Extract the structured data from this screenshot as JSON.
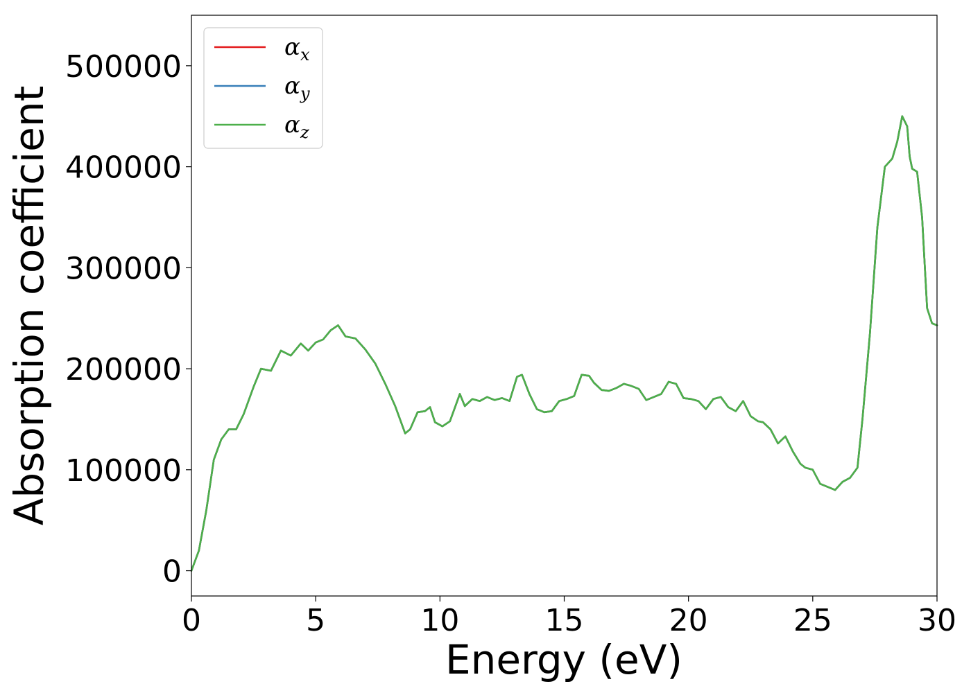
{
  "chart_data": {
    "type": "line",
    "xlabel": "Energy (eV)",
    "ylabel": "Absorption coefficient",
    "xlim": [
      0,
      30
    ],
    "ylim": [
      -25000,
      550000
    ],
    "xticks": [
      0,
      5,
      10,
      15,
      20,
      25,
      30
    ],
    "xtick_labels": [
      "0",
      "5",
      "10",
      "15",
      "20",
      "25",
      "30"
    ],
    "yticks": [
      0,
      100000,
      200000,
      300000,
      400000,
      500000
    ],
    "ytick_labels": [
      "0",
      "100000",
      "200000",
      "300000",
      "400000",
      "500000"
    ],
    "grid": false,
    "legend_position": "top-left",
    "x": [
      0,
      0.3,
      0.6,
      0.9,
      1.2,
      1.5,
      1.8,
      2.1,
      2.5,
      2.8,
      3.2,
      3.6,
      4.0,
      4.4,
      4.7,
      5.0,
      5.3,
      5.6,
      5.9,
      6.2,
      6.6,
      7.0,
      7.4,
      7.8,
      8.2,
      8.6,
      8.8,
      9.1,
      9.4,
      9.6,
      9.8,
      10.1,
      10.4,
      10.8,
      11.0,
      11.3,
      11.6,
      11.9,
      12.2,
      12.5,
      12.8,
      13.1,
      13.3,
      13.6,
      13.9,
      14.2,
      14.5,
      14.8,
      15.1,
      15.4,
      15.7,
      16.0,
      16.2,
      16.5,
      16.8,
      17.1,
      17.4,
      17.7,
      18.0,
      18.3,
      18.6,
      18.9,
      19.2,
      19.5,
      19.8,
      20.1,
      20.4,
      20.7,
      21.0,
      21.3,
      21.6,
      21.9,
      22.2,
      22.5,
      22.8,
      23.0,
      23.3,
      23.6,
      23.9,
      24.2,
      24.5,
      24.7,
      25.0,
      25.3,
      25.6,
      25.9,
      26.2,
      26.5,
      26.8,
      27.0,
      27.3,
      27.6,
      27.9,
      28.2,
      28.4,
      28.6,
      28.8,
      28.9,
      29.0,
      29.2,
      29.4,
      29.6,
      29.8,
      30.0
    ],
    "series": [
      {
        "name": "α_x",
        "color": "#e31a1c",
        "y": [
          0,
          20000,
          60000,
          110000,
          130000,
          140000,
          140000,
          155000,
          182000,
          200000,
          198000,
          218000,
          213000,
          225000,
          218000,
          226000,
          229000,
          238000,
          243000,
          232000,
          230000,
          219000,
          205000,
          185000,
          163000,
          136000,
          140000,
          157000,
          158000,
          162000,
          147000,
          143000,
          148000,
          175000,
          163000,
          170000,
          168000,
          172000,
          169000,
          171000,
          168000,
          192000,
          194000,
          175000,
          160000,
          157000,
          158000,
          168000,
          170000,
          173000,
          194000,
          193000,
          186000,
          179000,
          178000,
          181000,
          185000,
          183000,
          180000,
          169000,
          172000,
          175000,
          187000,
          185000,
          171000,
          170000,
          168000,
          160000,
          170000,
          172000,
          162000,
          158000,
          168000,
          153000,
          148000,
          147000,
          140000,
          126000,
          133000,
          118000,
          106000,
          102000,
          100000,
          86000,
          83000,
          80000,
          88000,
          92000,
          102000,
          150000,
          235000,
          340000,
          400000,
          408000,
          425000,
          450000,
          440000,
          410000,
          398000,
          395000,
          350000,
          260000,
          245000,
          243000
        ]
      },
      {
        "name": "α_y",
        "color": "#377eb8",
        "y": [
          0,
          20000,
          60000,
          110000,
          130000,
          140000,
          140000,
          155000,
          182000,
          200000,
          198000,
          218000,
          213000,
          225000,
          218000,
          226000,
          229000,
          238000,
          243000,
          232000,
          230000,
          219000,
          205000,
          185000,
          163000,
          136000,
          140000,
          157000,
          158000,
          162000,
          147000,
          143000,
          148000,
          175000,
          163000,
          170000,
          168000,
          172000,
          169000,
          171000,
          168000,
          192000,
          194000,
          175000,
          160000,
          157000,
          158000,
          168000,
          170000,
          173000,
          194000,
          193000,
          186000,
          179000,
          178000,
          181000,
          185000,
          183000,
          180000,
          169000,
          172000,
          175000,
          187000,
          185000,
          171000,
          170000,
          168000,
          160000,
          170000,
          172000,
          162000,
          158000,
          168000,
          153000,
          148000,
          147000,
          140000,
          126000,
          133000,
          118000,
          106000,
          102000,
          100000,
          86000,
          83000,
          80000,
          88000,
          92000,
          102000,
          150000,
          235000,
          340000,
          400000,
          408000,
          425000,
          450000,
          440000,
          410000,
          398000,
          395000,
          350000,
          260000,
          245000,
          243000
        ]
      },
      {
        "name": "α_z",
        "color": "#4daf4a",
        "y": [
          0,
          20000,
          60000,
          110000,
          130000,
          140000,
          140000,
          155000,
          182000,
          200000,
          198000,
          218000,
          213000,
          225000,
          218000,
          226000,
          229000,
          238000,
          243000,
          232000,
          230000,
          219000,
          205000,
          185000,
          163000,
          136000,
          140000,
          157000,
          158000,
          162000,
          147000,
          143000,
          148000,
          175000,
          163000,
          170000,
          168000,
          172000,
          169000,
          171000,
          168000,
          192000,
          194000,
          175000,
          160000,
          157000,
          158000,
          168000,
          170000,
          173000,
          194000,
          193000,
          186000,
          179000,
          178000,
          181000,
          185000,
          183000,
          180000,
          169000,
          172000,
          175000,
          187000,
          185000,
          171000,
          170000,
          168000,
          160000,
          170000,
          172000,
          162000,
          158000,
          168000,
          153000,
          148000,
          147000,
          140000,
          126000,
          133000,
          118000,
          106000,
          102000,
          100000,
          86000,
          83000,
          80000,
          88000,
          92000,
          102000,
          150000,
          235000,
          340000,
          400000,
          408000,
          425000,
          450000,
          440000,
          410000,
          398000,
          395000,
          350000,
          260000,
          245000,
          243000
        ]
      }
    ],
    "legend": [
      {
        "symbol": "α",
        "subscript": "x",
        "color": "#e31a1c"
      },
      {
        "symbol": "α",
        "subscript": "y",
        "color": "#377eb8"
      },
      {
        "symbol": "α",
        "subscript": "z",
        "color": "#4daf4a"
      }
    ]
  }
}
